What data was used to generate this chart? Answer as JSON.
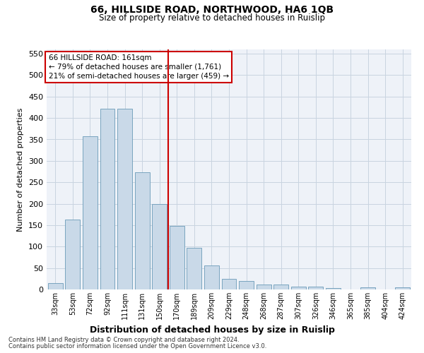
{
  "title": "66, HILLSIDE ROAD, NORTHWOOD, HA6 1QB",
  "subtitle": "Size of property relative to detached houses in Ruislip",
  "xlabel": "Distribution of detached houses by size in Ruislip",
  "ylabel": "Number of detached properties",
  "bar_color": "#c9d9e8",
  "bar_edge_color": "#6a9ab8",
  "grid_color": "#c8d4e0",
  "background_color": "#eef2f8",
  "vline_color": "#cc0000",
  "vline_x": 7,
  "categories": [
    "33sqm",
    "53sqm",
    "72sqm",
    "92sqm",
    "111sqm",
    "131sqm",
    "150sqm",
    "170sqm",
    "189sqm",
    "209sqm",
    "229sqm",
    "248sqm",
    "268sqm",
    "287sqm",
    "307sqm",
    "326sqm",
    "346sqm",
    "365sqm",
    "385sqm",
    "404sqm",
    "424sqm"
  ],
  "values": [
    15,
    163,
    357,
    422,
    422,
    273,
    200,
    148,
    97,
    56,
    25,
    20,
    12,
    12,
    7,
    6,
    4,
    0,
    5,
    0,
    5
  ],
  "ylim": [
    0,
    560
  ],
  "yticks": [
    0,
    50,
    100,
    150,
    200,
    250,
    300,
    350,
    400,
    450,
    500,
    550
  ],
  "annotation_text": "66 HILLSIDE ROAD: 161sqm\n← 79% of detached houses are smaller (1,761)\n21% of semi-detached houses are larger (459) →",
  "annotation_box_color": "#ffffff",
  "annotation_box_edge": "#cc0000",
  "footer_line1": "Contains HM Land Registry data © Crown copyright and database right 2024.",
  "footer_line2": "Contains public sector information licensed under the Open Government Licence v3.0."
}
